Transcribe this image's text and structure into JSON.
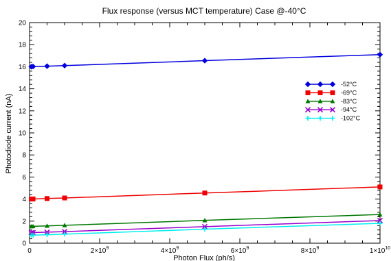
{
  "chart_data": {
    "type": "line",
    "title": "Flux response (versus MCT temperature) Case @-40°C",
    "xlabel": "Photon Flux (ph/s)",
    "ylabel": "Photodiode current (nA)",
    "xlim": [
      0,
      10000000000
    ],
    "ylim": [
      0,
      20
    ],
    "x_ticks": [
      {
        "value": 0,
        "base": "0",
        "exp": ""
      },
      {
        "value": 2000000000,
        "base": "2×10",
        "exp": "9"
      },
      {
        "value": 4000000000,
        "base": "4×10",
        "exp": "9"
      },
      {
        "value": 6000000000,
        "base": "6×10",
        "exp": "9"
      },
      {
        "value": 8000000000,
        "base": "8×10",
        "exp": "9"
      },
      {
        "value": 10000000000,
        "base": "1×10",
        "exp": "10"
      }
    ],
    "y_ticks": [
      0,
      2,
      4,
      6,
      8,
      10,
      12,
      14,
      16,
      18,
      20
    ],
    "grid": false,
    "legend_position": "right",
    "x": [
      50000000,
      100000000,
      500000000,
      1000000000,
      5000000000,
      10000000000
    ],
    "series": [
      {
        "name": "-52°C",
        "color": "#0000dd",
        "marker": "diamond",
        "values": [
          16.0,
          16.02,
          16.05,
          16.1,
          16.55,
          17.1
        ]
      },
      {
        "name": "-69°C",
        "color": "#ee0000",
        "marker": "square",
        "values": [
          4.0,
          4.01,
          4.05,
          4.1,
          4.55,
          5.1
        ]
      },
      {
        "name": "-83°C",
        "color": "#007700",
        "marker": "triangle",
        "values": [
          1.52,
          1.53,
          1.57,
          1.62,
          2.07,
          2.6
        ]
      },
      {
        "name": "-94°C",
        "color": "#9900cc",
        "marker": "x",
        "values": [
          0.95,
          0.96,
          1.0,
          1.05,
          1.5,
          2.05
        ]
      },
      {
        "name": "-102°C",
        "color": "#00eeee",
        "marker": "plus",
        "values": [
          0.72,
          0.73,
          0.77,
          0.82,
          1.27,
          1.8
        ]
      }
    ]
  }
}
